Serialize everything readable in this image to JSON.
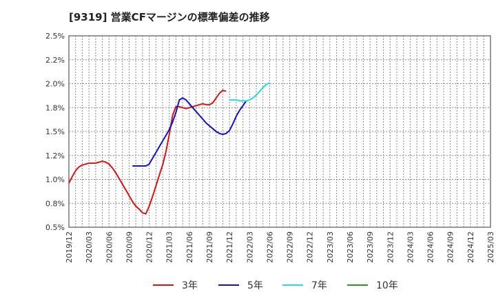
{
  "chart_data": {
    "type": "line",
    "title": "[9319]  営業CFマージンの標準偏差の推移",
    "xlabel": "",
    "ylabel": "",
    "x_ticks": [
      "2019/12",
      "2020/03",
      "2020/06",
      "2020/09",
      "2020/12",
      "2021/03",
      "2021/06",
      "2021/09",
      "2021/12",
      "2022/03",
      "2022/06",
      "2022/09",
      "2022/12",
      "2023/03",
      "2023/06",
      "2023/09",
      "2023/12",
      "2024/03",
      "2024/06",
      "2024/09",
      "2024/12",
      "2025/03"
    ],
    "y_ticks": [
      "0.5%",
      "0.8%",
      "1.0%",
      "1.2%",
      "1.5%",
      "1.8%",
      "2.0%",
      "2.2%",
      "2.5%"
    ],
    "ylim": [
      0.5,
      2.5
    ],
    "grid": true,
    "legend_position": "bottom",
    "series": [
      {
        "name": "3年",
        "color": "#dd1111",
        "values": [
          0.96,
          1.03,
          1.09,
          1.13,
          1.15,
          1.16,
          1.17,
          1.17,
          1.17,
          1.18,
          1.19,
          1.18,
          1.16,
          1.12,
          1.07,
          1.01,
          0.95,
          0.89,
          0.83,
          0.77,
          0.72,
          0.69,
          0.65,
          0.64,
          0.72,
          0.82,
          0.93,
          1.04,
          1.15,
          1.29,
          1.47,
          1.67,
          1.76,
          1.76,
          1.75,
          1.74,
          1.75,
          1.76,
          1.77,
          1.78,
          1.79,
          1.78,
          1.78,
          1.8,
          1.85,
          1.9,
          1.93,
          1.92
        ]
      },
      {
        "name": "5年",
        "color": "#1111cc",
        "values": [
          null,
          null,
          null,
          null,
          null,
          null,
          null,
          null,
          null,
          null,
          null,
          null,
          null,
          null,
          null,
          null,
          null,
          null,
          null,
          1.14,
          1.14,
          1.14,
          1.14,
          1.14,
          1.16,
          1.22,
          1.28,
          1.34,
          1.4,
          1.46,
          1.52,
          1.6,
          1.7,
          1.83,
          1.85,
          1.83,
          1.79,
          1.75,
          1.71,
          1.67,
          1.63,
          1.59,
          1.56,
          1.53,
          1.5,
          1.48,
          1.47,
          1.48,
          1.51,
          1.58,
          1.66,
          1.72,
          1.77,
          1.82
        ]
      },
      {
        "name": "7年",
        "color": "#22dddd",
        "values": [
          null,
          null,
          null,
          null,
          null,
          null,
          null,
          null,
          null,
          null,
          null,
          null,
          null,
          null,
          null,
          null,
          null,
          null,
          null,
          null,
          null,
          null,
          null,
          null,
          null,
          null,
          null,
          null,
          null,
          null,
          null,
          null,
          null,
          null,
          null,
          null,
          null,
          null,
          null,
          null,
          null,
          null,
          null,
          null,
          null,
          null,
          null,
          null,
          1.83,
          1.83,
          1.83,
          1.82,
          1.82,
          1.82,
          1.83,
          1.85,
          1.88,
          1.92,
          1.96,
          1.99,
          2.01
        ]
      },
      {
        "name": "10年",
        "color": "#229922",
        "values": []
      }
    ]
  }
}
